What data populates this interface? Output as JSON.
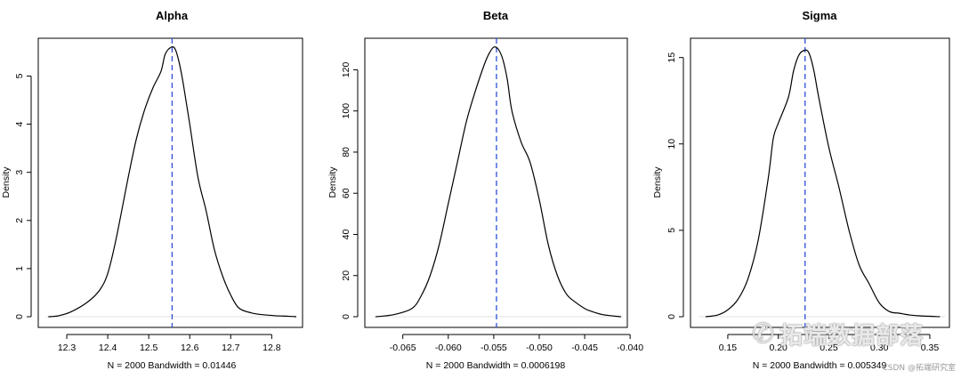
{
  "colors": {
    "mean_line": "#2d4fd8",
    "density_line": "#000000",
    "background": "#ffffff"
  },
  "watermark": {
    "icon": "wechat-icon",
    "text": "拓端数据部落"
  },
  "credit": "CSDN @拓端研究室",
  "chart_data": [
    {
      "type": "line",
      "title": "Alpha",
      "ylabel": "Density",
      "xlabel": "N = 2000   Bandwidth = 0.01446",
      "xlim": [
        12.25,
        12.86
      ],
      "ylim": [
        0,
        5.6
      ],
      "xticks": [
        12.3,
        12.4,
        12.5,
        12.6,
        12.7,
        12.8
      ],
      "xtick_labels": [
        "12.3",
        "12.4",
        "12.5",
        "12.6",
        "12.7",
        "12.8"
      ],
      "yticks": [
        0,
        1,
        2,
        3,
        4,
        5
      ],
      "ytick_labels": [
        "0",
        "1",
        "2",
        "3",
        "4",
        "5"
      ],
      "mean_line": 12.557,
      "x": [
        12.255,
        12.28,
        12.31,
        12.35,
        12.38,
        12.4,
        12.42,
        12.45,
        12.47,
        12.49,
        12.51,
        12.53,
        12.54,
        12.555,
        12.565,
        12.575,
        12.585,
        12.6,
        12.62,
        12.64,
        12.66,
        12.68,
        12.7,
        12.72,
        12.75,
        12.78,
        12.81,
        12.84,
        12.86
      ],
      "y": [
        0.0,
        0.02,
        0.1,
        0.3,
        0.55,
        0.9,
        1.6,
        2.9,
        3.7,
        4.3,
        4.75,
        5.1,
        5.45,
        5.6,
        5.55,
        5.25,
        4.8,
        4.0,
        2.9,
        2.2,
        1.4,
        0.85,
        0.45,
        0.18,
        0.08,
        0.04,
        0.02,
        0.01,
        0.0
      ]
    },
    {
      "type": "line",
      "title": "Beta",
      "ylabel": "Density",
      "xlabel": "N = 2000   Bandwidth = 0.0006198",
      "xlim": [
        -0.0682,
        -0.0408
      ],
      "ylim": [
        0,
        131
      ],
      "xticks": [
        -0.065,
        -0.06,
        -0.055,
        -0.05,
        -0.045,
        -0.04
      ],
      "xtick_labels": [
        "-0.065",
        "-0.060",
        "-0.055",
        "-0.050",
        "-0.045",
        "-0.040"
      ],
      "yticks": [
        0,
        20,
        40,
        60,
        80,
        100,
        120
      ],
      "ytick_labels": [
        "0",
        "20",
        "40",
        "60",
        "80",
        "100",
        "120"
      ],
      "mean_line": -0.0547,
      "x": [
        -0.068,
        -0.066,
        -0.064,
        -0.063,
        -0.062,
        -0.061,
        -0.06,
        -0.059,
        -0.058,
        -0.057,
        -0.056,
        -0.0555,
        -0.055,
        -0.0545,
        -0.054,
        -0.0535,
        -0.053,
        -0.052,
        -0.051,
        -0.05,
        -0.049,
        -0.048,
        -0.047,
        -0.046,
        -0.045,
        -0.0445,
        -0.043,
        -0.041
      ],
      "y": [
        0,
        1,
        4,
        10,
        20,
        35,
        55,
        75,
        95,
        110,
        123,
        128,
        131,
        130,
        125,
        115,
        100,
        85,
        75,
        57,
        35,
        20,
        11,
        7,
        4,
        3,
        1,
        0
      ]
    },
    {
      "type": "line",
      "title": "Sigma",
      "ylabel": "Density",
      "xlabel": "N = 2000   Bandwidth = 0.005349",
      "xlim": [
        0.121,
        0.365
      ],
      "ylim": [
        0,
        15.6
      ],
      "xticks": [
        0.15,
        0.2,
        0.25,
        0.3,
        0.35
      ],
      "xtick_labels": [
        "0.15",
        "0.20",
        "0.25",
        "0.30",
        "0.35"
      ],
      "yticks": [
        0,
        5,
        10,
        15
      ],
      "ytick_labels": [
        "0",
        "5",
        "10",
        "15"
      ],
      "mean_line": 0.2265,
      "x": [
        0.128,
        0.14,
        0.15,
        0.16,
        0.17,
        0.18,
        0.19,
        0.195,
        0.2,
        0.21,
        0.215,
        0.22,
        0.225,
        0.23,
        0.235,
        0.24,
        0.25,
        0.26,
        0.27,
        0.28,
        0.29,
        0.3,
        0.31,
        0.32,
        0.33,
        0.34,
        0.36
      ],
      "y": [
        0.0,
        0.1,
        0.4,
        1.0,
        2.2,
        4.4,
        8.0,
        10.3,
        11.2,
        12.7,
        14.2,
        15.1,
        15.4,
        15.3,
        14.3,
        12.7,
        9.8,
        7.5,
        5.0,
        3.0,
        1.9,
        0.8,
        0.3,
        0.2,
        0.1,
        0.05,
        0.0
      ]
    }
  ]
}
